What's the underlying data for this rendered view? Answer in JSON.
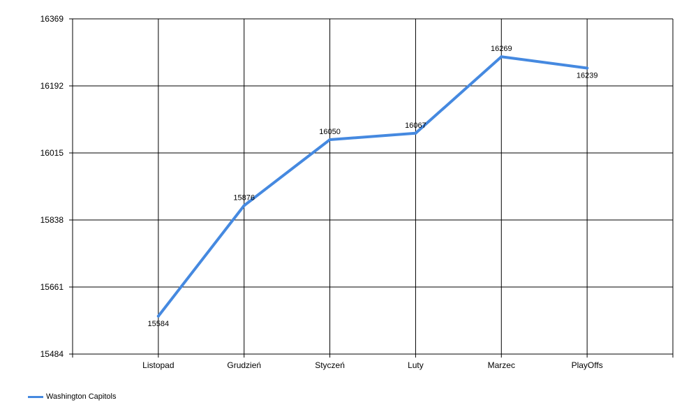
{
  "chart_data": {
    "type": "line",
    "title": "",
    "xlabel": "",
    "ylabel": "",
    "categories": [
      "Listopad",
      "Grudzień",
      "Styczeń",
      "Luty",
      "Marzec",
      "PlayOffs"
    ],
    "series": [
      {
        "name": "Washington Capitols",
        "color": "#4589E0",
        "values": [
          15584,
          15876,
          16050,
          16067,
          16269,
          16239
        ]
      }
    ],
    "ylim": [
      15484,
      16369
    ],
    "yticks": [
      "15484",
      "15661",
      "15838",
      "16015",
      "16192",
      "16369"
    ],
    "grid": true,
    "data_labels": true,
    "legend_position": "bottom-left"
  }
}
